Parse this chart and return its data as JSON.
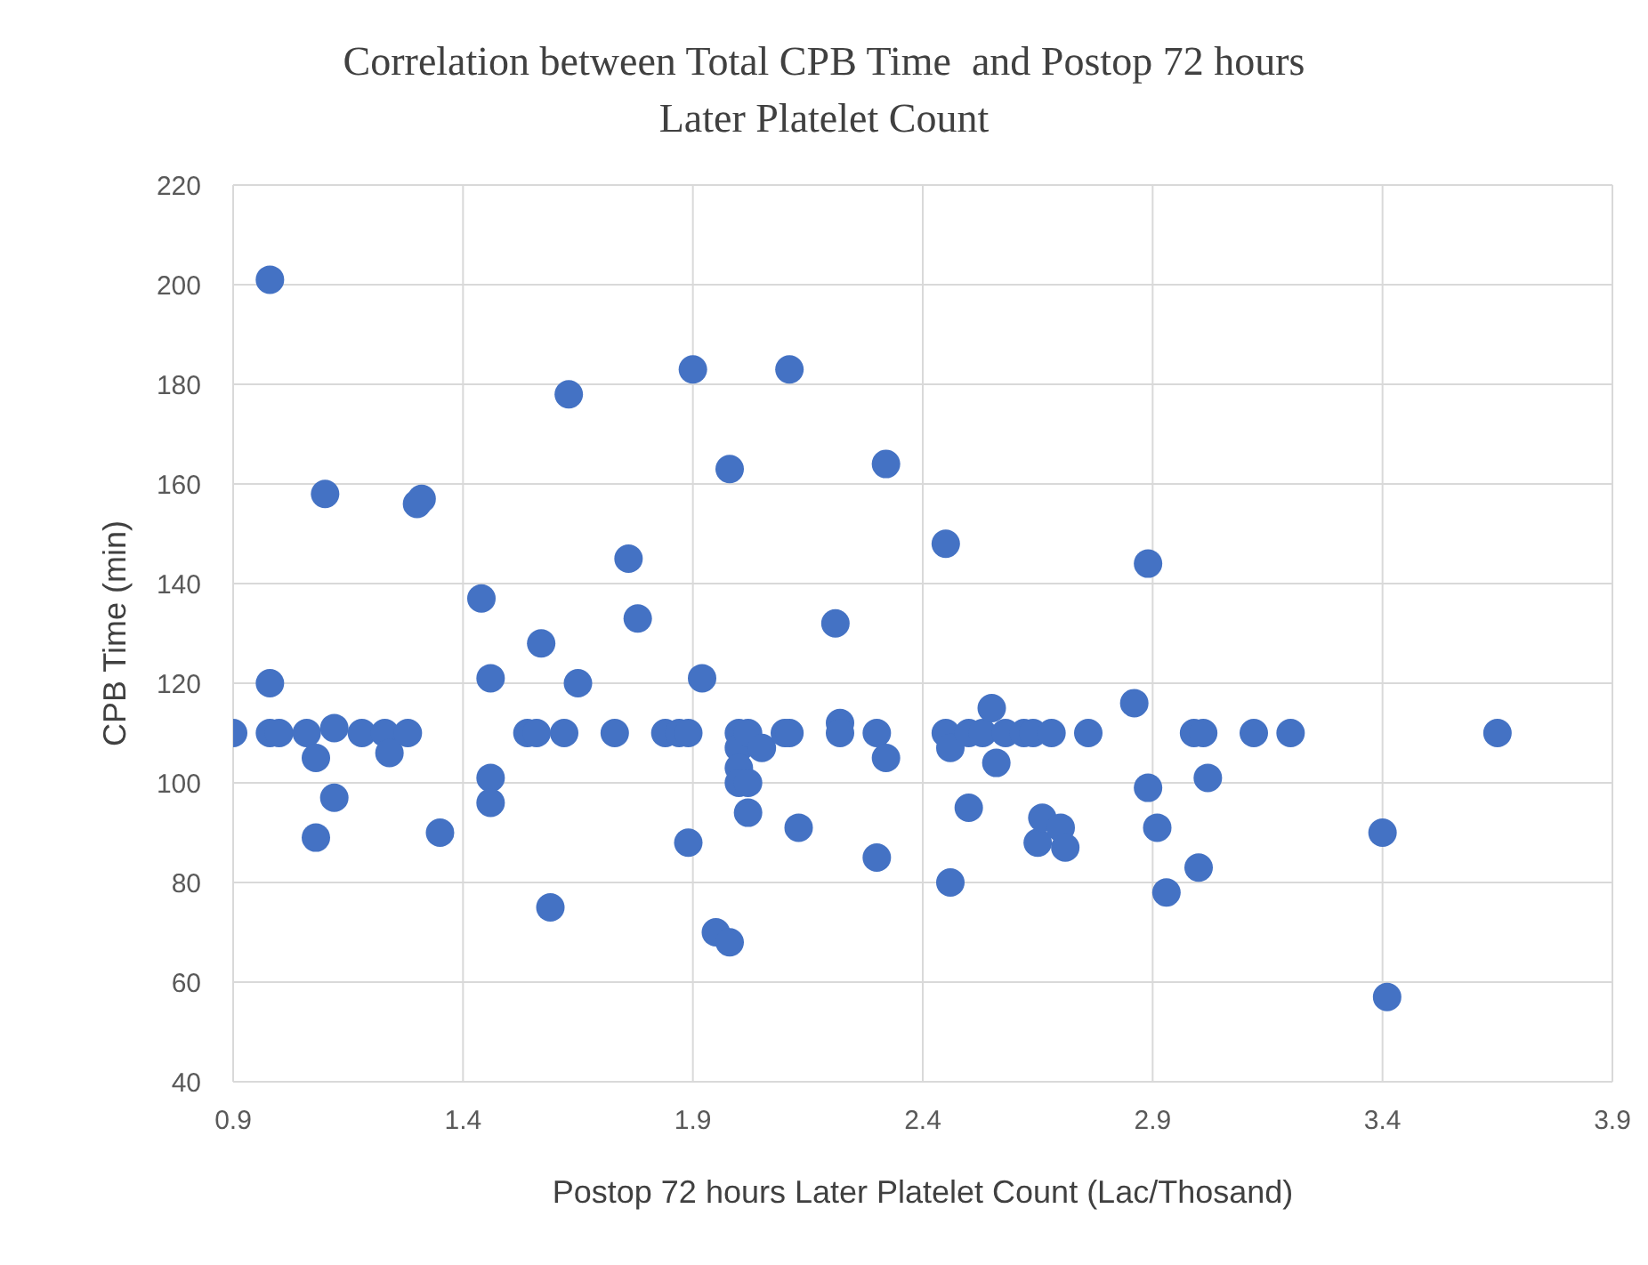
{
  "chart_data": {
    "type": "scatter",
    "title": "Correlation between Total CPB Time  and Postop 72 hours Later Platelet Count",
    "xlabel": "Postop 72 hours Later Platelet Count (Lac/Thosand)",
    "ylabel": "CPB Time (min)",
    "xlim": [
      0.9,
      3.9
    ],
    "xticks": [
      0.9,
      1.4,
      1.9,
      2.4,
      2.9,
      3.4,
      3.9
    ],
    "ylim": [
      40,
      220
    ],
    "yticks": [
      40,
      60,
      80,
      100,
      120,
      140,
      160,
      180,
      200,
      220
    ],
    "grid": true,
    "legend": false,
    "marker": "circle",
    "series": [
      {
        "color": "#4472c4",
        "x": [
          0.9,
          0.98,
          0.98,
          0.98,
          1.0,
          1.06,
          1.08,
          1.08,
          1.1,
          1.12,
          1.12,
          1.18,
          1.23,
          1.24,
          1.28,
          1.3,
          1.31,
          1.35,
          1.44,
          1.46,
          1.46,
          1.46,
          1.54,
          1.56,
          1.57,
          1.59,
          1.62,
          1.63,
          1.65,
          1.73,
          1.76,
          1.78,
          1.84,
          1.87,
          1.89,
          1.89,
          1.9,
          1.92,
          1.95,
          1.98,
          1.98,
          2.0,
          2.0,
          2.0,
          2.0,
          2.02,
          2.02,
          2.02,
          2.05,
          2.1,
          2.11,
          2.11,
          2.13,
          2.21,
          2.22,
          2.22,
          2.3,
          2.3,
          2.32,
          2.32,
          2.45,
          2.45,
          2.46,
          2.46,
          2.5,
          2.5,
          2.53,
          2.55,
          2.56,
          2.58,
          2.62,
          2.64,
          2.65,
          2.66,
          2.68,
          2.7,
          2.71,
          2.76,
          2.86,
          2.89,
          2.89,
          2.91,
          2.93,
          2.99,
          3.0,
          3.01,
          3.02,
          3.12,
          3.2,
          3.4,
          3.41,
          3.65
        ],
        "values": [
          110,
          201,
          120,
          110,
          110,
          110,
          105,
          89,
          158,
          111,
          97,
          110,
          110,
          106,
          110,
          156,
          157,
          90,
          137,
          121,
          101,
          96,
          110,
          110,
          128,
          75,
          110,
          178,
          120,
          110,
          145,
          133,
          110,
          110,
          110,
          88,
          183,
          121,
          70,
          68,
          163,
          110,
          107,
          103,
          100,
          110,
          100,
          94,
          107,
          110,
          110,
          183,
          91,
          132,
          112,
          110,
          110,
          85,
          164,
          105,
          148,
          110,
          107,
          80,
          110,
          95,
          110,
          115,
          104,
          110,
          110,
          110,
          88,
          93,
          110,
          91,
          87,
          110,
          116,
          144,
          99,
          91,
          78,
          110,
          83,
          110,
          101,
          110,
          110,
          90,
          57,
          110
        ]
      }
    ]
  }
}
